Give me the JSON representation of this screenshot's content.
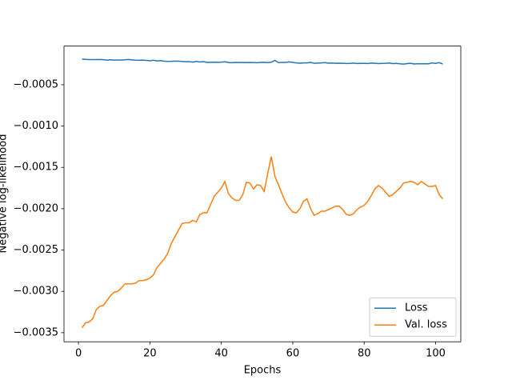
{
  "chart_data": {
    "type": "line",
    "x_label": "Epochs",
    "y_label": "Negative log-likelihood",
    "x": [
      1,
      2,
      3,
      4,
      5,
      6,
      7,
      8,
      9,
      10,
      11,
      12,
      13,
      14,
      15,
      16,
      17,
      18,
      19,
      20,
      21,
      22,
      23,
      24,
      25,
      26,
      27,
      28,
      29,
      30,
      31,
      32,
      33,
      34,
      35,
      36,
      37,
      38,
      39,
      40,
      41,
      42,
      43,
      44,
      45,
      46,
      47,
      48,
      49,
      50,
      51,
      52,
      53,
      54,
      55,
      56,
      57,
      58,
      59,
      60,
      61,
      62,
      63,
      64,
      65,
      66,
      67,
      68,
      69,
      70,
      71,
      72,
      73,
      74,
      75,
      76,
      77,
      78,
      79,
      80,
      81,
      82,
      83,
      84,
      85,
      86,
      87,
      88,
      89,
      90,
      91,
      92,
      93,
      94,
      95,
      96,
      97,
      98,
      99,
      100,
      101,
      102
    ],
    "series": [
      {
        "name": "Loss",
        "color": "#1f77b4",
        "values": [
          -0.00019,
          -0.000193,
          -0.000195,
          -0.000196,
          -0.000195,
          -0.000194,
          -0.000197,
          -0.000203,
          -0.000198,
          -0.000202,
          -0.000201,
          -0.0002,
          -0.000198,
          -0.000194,
          -0.000199,
          -0.000203,
          -0.000204,
          -0.000202,
          -0.000205,
          -0.00021,
          -0.000203,
          -0.000212,
          -0.000208,
          -0.000215,
          -0.000217,
          -0.000216,
          -0.000214,
          -0.000215,
          -0.000218,
          -0.000221,
          -0.00022,
          -0.000226,
          -0.000218,
          -0.000225,
          -0.00022,
          -0.000229,
          -0.000228,
          -0.000227,
          -0.000229,
          -0.000226,
          -0.000222,
          -0.000231,
          -0.000233,
          -0.00023,
          -0.000231,
          -0.000231,
          -0.000232,
          -0.000231,
          -0.000232,
          -0.000233,
          -0.00023,
          -0.000228,
          -0.000232,
          -0.000227,
          -0.000205,
          -0.000232,
          -0.00023,
          -0.000229,
          -0.000224,
          -0.00023,
          -0.000236,
          -0.000239,
          -0.000236,
          -0.000235,
          -0.000228,
          -0.00024,
          -0.000238,
          -0.000236,
          -0.000232,
          -0.000239,
          -0.000237,
          -0.00024,
          -0.000239,
          -0.00024,
          -0.000243,
          -0.000241,
          -0.000238,
          -0.000243,
          -0.000242,
          -0.000241,
          -0.000243,
          -0.000238,
          -0.00024,
          -0.000244,
          -0.000242,
          -0.00024,
          -0.000237,
          -0.000244,
          -0.000242,
          -0.000246,
          -0.00025,
          -0.000244,
          -0.00024,
          -0.000249,
          -0.000245,
          -0.000246,
          -0.000245,
          -0.000246,
          -0.000236,
          -0.000242,
          -0.000232,
          -0.00025
        ]
      },
      {
        "name": "Val. loss",
        "color": "#ff7f0e",
        "values": [
          -0.00344,
          -0.00338,
          -0.00337,
          -0.00333,
          -0.00322,
          -0.00318,
          -0.00317,
          -0.00311,
          -0.00305,
          -0.00301,
          -0.003,
          -0.00296,
          -0.00291,
          -0.00291,
          -0.00291,
          -0.0029,
          -0.00287,
          -0.00287,
          -0.00286,
          -0.00284,
          -0.0028,
          -0.00271,
          -0.00266,
          -0.00261,
          -0.00254,
          -0.00242,
          -0.00234,
          -0.00226,
          -0.00218,
          -0.00217,
          -0.00217,
          -0.00214,
          -0.00216,
          -0.00207,
          -0.00205,
          -0.00205,
          -0.00195,
          -0.00185,
          -0.0018,
          -0.00175,
          -0.00167,
          -0.00182,
          -0.00187,
          -0.0019,
          -0.0019,
          -0.00183,
          -0.00168,
          -0.00169,
          -0.00176,
          -0.00171,
          -0.00172,
          -0.00179,
          -0.00157,
          -0.00137,
          -0.00161,
          -0.00171,
          -0.00182,
          -0.00192,
          -0.00199,
          -0.00204,
          -0.00205,
          -0.002,
          -0.00191,
          -0.00188,
          -0.002,
          -0.00208,
          -0.00206,
          -0.00203,
          -0.00203,
          -0.00201,
          -0.00199,
          -0.00197,
          -0.00197,
          -0.00201,
          -0.00207,
          -0.00208,
          -0.00206,
          -0.00201,
          -0.00198,
          -0.00196,
          -0.00191,
          -0.00184,
          -0.00176,
          -0.00172,
          -0.00175,
          -0.0018,
          -0.00185,
          -0.00183,
          -0.00179,
          -0.00175,
          -0.00169,
          -0.00168,
          -0.00167,
          -0.00168,
          -0.00171,
          -0.00167,
          -0.0017,
          -0.00173,
          -0.00173,
          -0.00172,
          -0.00183,
          -0.00188
        ]
      }
    ],
    "xlim": [
      -4.05,
      107.05
    ],
    "ylim": [
      -0.00361,
      -3.2e-05
    ],
    "xticks": [
      0,
      20,
      40,
      60,
      80,
      100
    ],
    "yticks": [
      {
        "value": -0.0035,
        "label": "−0.0035"
      },
      {
        "value": -0.003,
        "label": "−0.0030"
      },
      {
        "value": -0.0025,
        "label": "−0.0025"
      },
      {
        "value": -0.002,
        "label": "−0.0020"
      },
      {
        "value": -0.0015,
        "label": "−0.0015"
      },
      {
        "value": -0.001,
        "label": "−0.0010"
      },
      {
        "value": -0.0005,
        "label": "−0.0005"
      }
    ],
    "grid": false,
    "legend": "lower right"
  }
}
